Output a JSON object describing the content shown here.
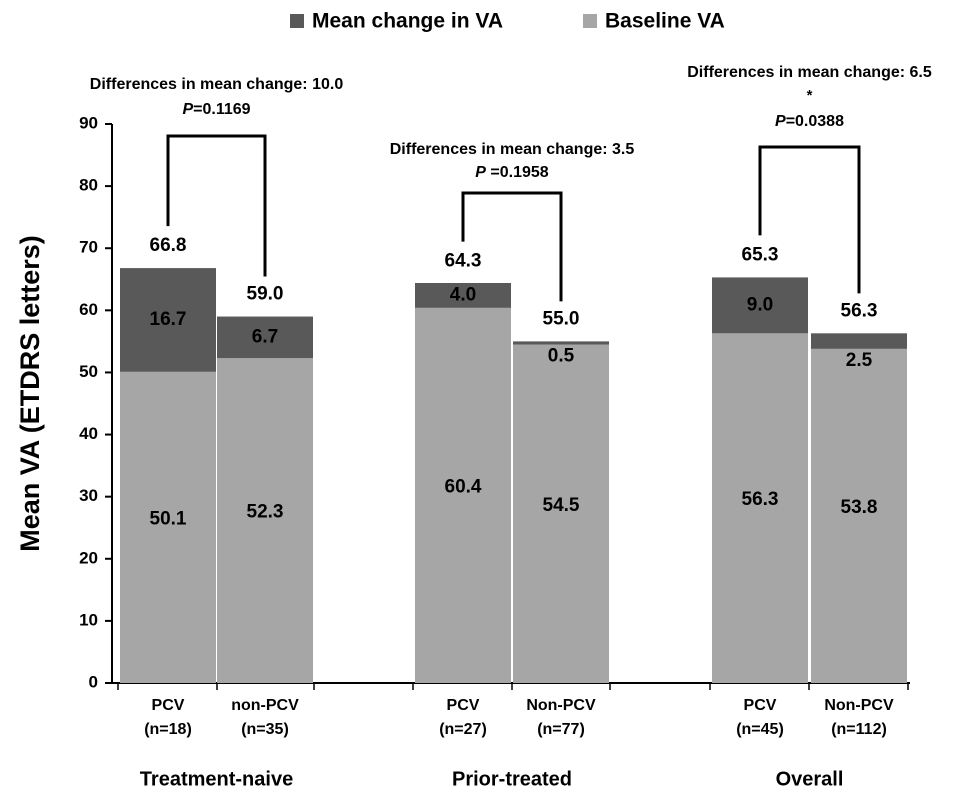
{
  "chart_data": {
    "type": "stacked-bar",
    "ylabel": "Mean VA (ETDRS letters)",
    "ylim": [
      0,
      90
    ],
    "yticks": [
      0,
      10,
      20,
      30,
      40,
      50,
      60,
      70,
      80,
      90
    ],
    "categories": [
      [
        "PCV",
        "(n=18)"
      ],
      [
        "non-PCV",
        "(n=35)"
      ],
      [
        "PCV",
        "(n=27)"
      ],
      [
        "Non-PCV",
        "(n=77)"
      ],
      [
        "PCV",
        "(n=45)"
      ],
      [
        "Non-PCV",
        "(n=112)"
      ]
    ],
    "series": [
      {
        "name": "Baseline VA",
        "color": "#a6a6a6",
        "label_color": "#000000",
        "values": [
          50.1,
          52.3,
          60.4,
          54.5,
          56.3,
          53.8
        ]
      },
      {
        "name": "Mean change in VA",
        "color": "#595959",
        "label_color": "#ffffff",
        "values": [
          16.7,
          6.7,
          4.0,
          0.5,
          9.0,
          2.5
        ],
        "value_labels": [
          "16.7",
          "6.7",
          "4.0",
          "0.5",
          "9.0",
          "2.5"
        ]
      }
    ],
    "totals": {
      "values": [
        66.8,
        59.0,
        64.3,
        55.0,
        65.3,
        56.3
      ],
      "value_labels": [
        "66.8",
        "59.0",
        "64.3",
        "55.0",
        "65.3",
        "56.3"
      ]
    },
    "groups": [
      {
        "name": "Treatment-naive",
        "difference": "Differences in mean change: 10.0",
        "p": "P=0.1169"
      },
      {
        "name": "Prior-treated",
        "difference": "Differences in mean change: 3.5",
        "p": "P =0.1958"
      },
      {
        "name": "Overall",
        "difference": "Differences in mean change: 6.5",
        "significance": "*",
        "p": "P=0.0388"
      }
    ]
  }
}
